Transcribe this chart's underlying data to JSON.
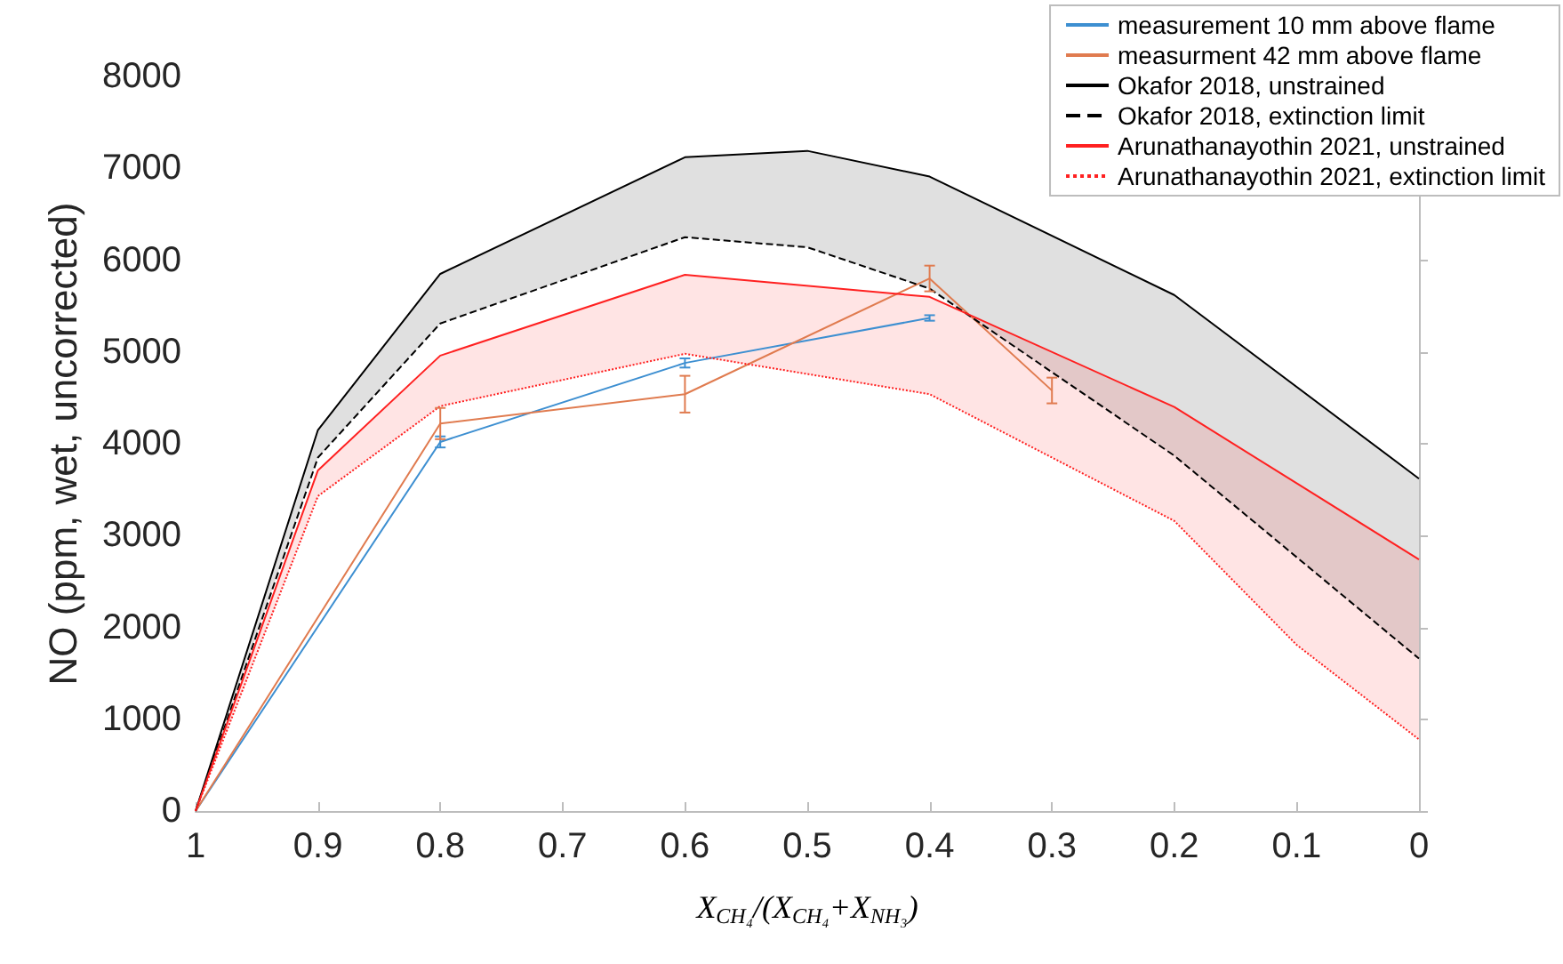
{
  "chart_data": {
    "type": "line",
    "ylabel": "NO (ppm, wet, uncorrected)",
    "xlabel": "X$_{CH₄}$/(X$_{CH₄}$+X$_{NH₃}$)",
    "xlim": [
      1,
      0
    ],
    "xticks": [
      1,
      0.9,
      0.8,
      0.7,
      0.6,
      0.5,
      0.4,
      0.3,
      0.2,
      0.1,
      0
    ],
    "ylim": [
      0,
      8000
    ],
    "yticks": [
      0,
      1000,
      2000,
      3000,
      4000,
      5000,
      6000,
      7000,
      8000
    ],
    "grid": false,
    "legend": "top right",
    "marker": "none",
    "series": [
      {
        "name": "measurement 10 mm above flame",
        "color": "#3d8fd1",
        "line_style": "solid",
        "x": [
          1,
          0.8,
          0.6,
          0.4
        ],
        "values": [
          0,
          4020,
          4880,
          5370
        ],
        "errors": [
          null,
          60,
          50,
          30
        ]
      },
      {
        "name": "measurment 42 mm above flame",
        "color": "#e07b4f",
        "line_style": "solid",
        "x": [
          1,
          0.8,
          0.6,
          0.4,
          0.3
        ],
        "values": [
          0,
          4220,
          4540,
          5800,
          4580
        ],
        "errors": [
          null,
          170,
          200,
          140,
          140
        ]
      },
      {
        "name": "Okafor 2018, unstrained",
        "color": "#000000",
        "line_style": "solid",
        "x": [
          1,
          0.9,
          0.8,
          0.6,
          0.5,
          0.4,
          0.2,
          0
        ],
        "values": [
          0,
          4150,
          5850,
          7120,
          7190,
          6910,
          5620,
          3620
        ],
        "upper": [
          0,
          4150,
          5850,
          7120,
          7190,
          6910,
          5620,
          3620
        ],
        "lower": [
          0,
          3850,
          5310,
          6250,
          6140,
          5690,
          3870,
          1660
        ]
      },
      {
        "name": "Okafor 2018, extinction limit",
        "color": "#000000",
        "line_style": "dashed",
        "x": [
          1,
          0.9,
          0.8,
          0.6,
          0.5,
          0.4,
          0.2,
          0
        ],
        "values": [
          0,
          3850,
          5310,
          6250,
          6140,
          5690,
          3870,
          1660
        ]
      },
      {
        "name": "Arunathanayothin 2021, unstrained",
        "color": "#ff2020",
        "line_style": "solid",
        "x": [
          1,
          0.9,
          0.8,
          0.6,
          0.4,
          0.2,
          0.1,
          0
        ],
        "values": [
          0,
          3710,
          4960,
          5840,
          5600,
          4400,
          3570,
          2740
        ],
        "upper": [
          0,
          3710,
          4960,
          5840,
          5600,
          4400,
          3570,
          2740
        ],
        "lower": [
          0,
          3430,
          4410,
          4980,
          4540,
          3160,
          1810,
          780
        ]
      },
      {
        "name": "Arunathanayothin 2021, extinction limit",
        "color": "#ff2020",
        "line_style": "dotted",
        "x": [
          1,
          0.9,
          0.8,
          0.6,
          0.4,
          0.2,
          0.1,
          0
        ],
        "values": [
          0,
          3430,
          4410,
          4980,
          4540,
          3160,
          1810,
          780
        ]
      }
    ]
  }
}
